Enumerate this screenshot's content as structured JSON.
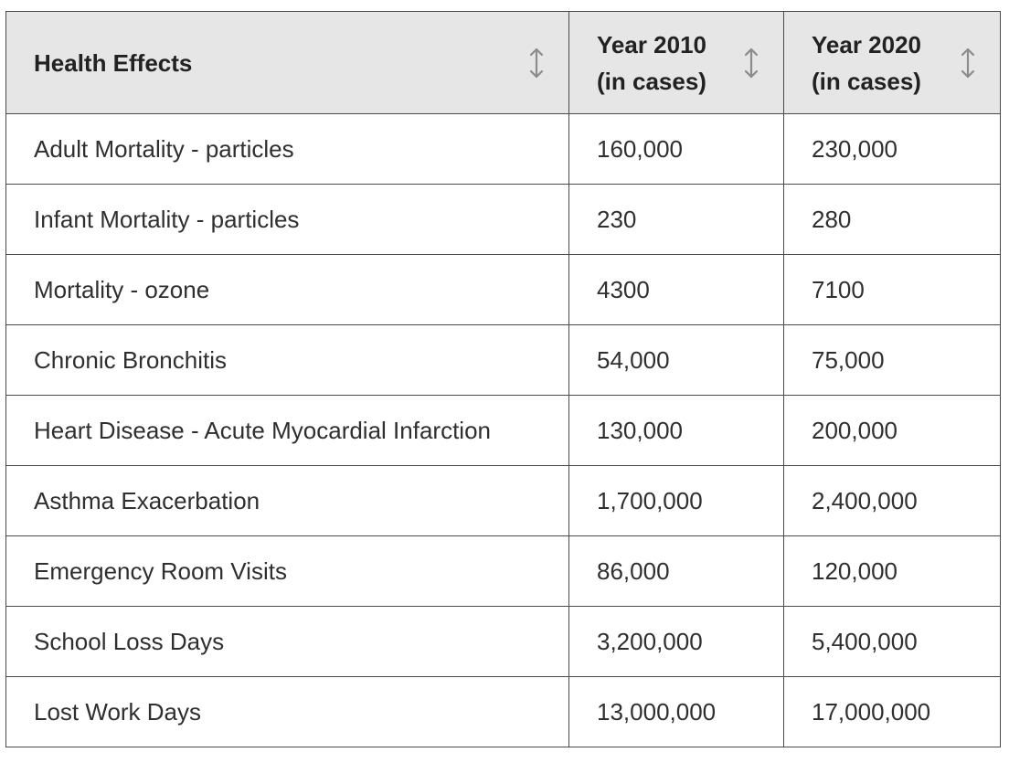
{
  "table": {
    "headers": [
      {
        "line1": "Health Effects",
        "line2": ""
      },
      {
        "line1": "Year 2010",
        "line2": "(in cases)"
      },
      {
        "line1": "Year 2020",
        "line2": "(in cases)"
      }
    ],
    "rows": [
      {
        "effect": "Adult Mortality - particles",
        "y2010": "160,000",
        "y2020": "230,000"
      },
      {
        "effect": "Infant Mortality - particles",
        "y2010": "230",
        "y2020": "280"
      },
      {
        "effect": "Mortality - ozone",
        "y2010": "4300",
        "y2020": "7100"
      },
      {
        "effect": "Chronic Bronchitis",
        "y2010": "54,000",
        "y2020": "75,000"
      },
      {
        "effect": "Heart Disease - Acute Myocardial Infarction",
        "y2010": "130,000",
        "y2020": "200,000"
      },
      {
        "effect": "Asthma Exacerbation",
        "y2010": "1,700,000",
        "y2020": "2,400,000"
      },
      {
        "effect": "Emergency Room Visits",
        "y2010": "86,000",
        "y2020": "120,000"
      },
      {
        "effect": "School Loss Days",
        "y2010": "3,200,000",
        "y2020": "5,400,000"
      },
      {
        "effect": "Lost Work Days",
        "y2010": "13,000,000",
        "y2020": "17,000,000"
      }
    ],
    "sort_icon": "sort-updown-icon",
    "colors": {
      "header_bg": "#e6e6e6",
      "border": "#4a4a4a",
      "icon": "#8c8c8c"
    }
  }
}
